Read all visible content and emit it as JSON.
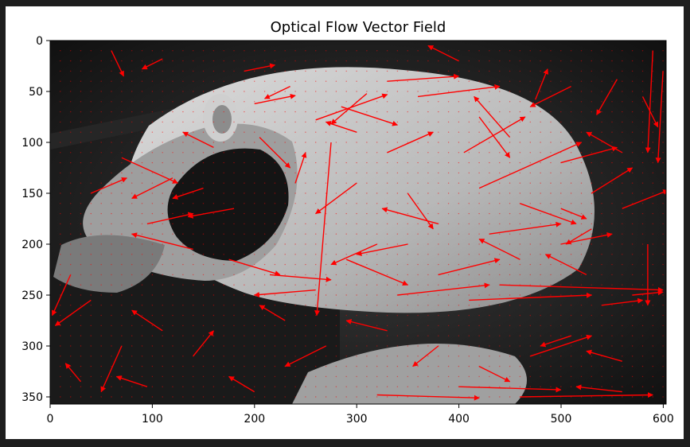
{
  "chart_data": {
    "type": "quiver",
    "title": "Optical Flow Vector Field",
    "xlabel": "",
    "ylabel": "",
    "xlim": [
      0,
      603
    ],
    "ylim": [
      357,
      0
    ],
    "x_ticks": [
      "0",
      "100",
      "200",
      "300",
      "400",
      "500",
      "600"
    ],
    "x_tick_values": [
      0,
      100,
      200,
      300,
      400,
      500,
      600
    ],
    "y_ticks": [
      "0",
      "50",
      "100",
      "150",
      "200",
      "250",
      "300",
      "350"
    ],
    "y_tick_values": [
      0,
      50,
      100,
      150,
      200,
      250,
      300,
      350
    ],
    "background": "grayscale photo of a white rat on a dark background",
    "arrow_color": "#ff0000",
    "grid_spacing": 10,
    "vectors": [
      {
        "x": 60,
        "y": 10,
        "dx": 12,
        "dy": 25
      },
      {
        "x": 110,
        "y": 18,
        "dx": -20,
        "dy": 10
      },
      {
        "x": 190,
        "y": 30,
        "dx": 30,
        "dy": -6
      },
      {
        "x": 200,
        "y": 62,
        "dx": 40,
        "dy": -8
      },
      {
        "x": 235,
        "y": 45,
        "dx": -25,
        "dy": 12
      },
      {
        "x": 260,
        "y": 78,
        "dx": 70,
        "dy": -25
      },
      {
        "x": 285,
        "y": 65,
        "dx": 55,
        "dy": 18
      },
      {
        "x": 310,
        "y": 52,
        "dx": -35,
        "dy": 30
      },
      {
        "x": 330,
        "y": 40,
        "dx": 70,
        "dy": -5
      },
      {
        "x": 360,
        "y": 55,
        "dx": 80,
        "dy": -10
      },
      {
        "x": 400,
        "y": 20,
        "dx": -30,
        "dy": -15
      },
      {
        "x": 420,
        "y": 75,
        "dx": 30,
        "dy": 40
      },
      {
        "x": 450,
        "y": 95,
        "dx": -35,
        "dy": -40
      },
      {
        "x": 475,
        "y": 58,
        "dx": 12,
        "dy": -30
      },
      {
        "x": 510,
        "y": 45,
        "dx": -40,
        "dy": 20
      },
      {
        "x": 555,
        "y": 38,
        "dx": -20,
        "dy": 35
      },
      {
        "x": 580,
        "y": 55,
        "dx": 15,
        "dy": 30
      },
      {
        "x": 590,
        "y": 10,
        "dx": -5,
        "dy": 100
      },
      {
        "x": 600,
        "y": 30,
        "dx": -5,
        "dy": 90
      },
      {
        "x": 70,
        "y": 115,
        "dx": 55,
        "dy": 25
      },
      {
        "x": 40,
        "y": 150,
        "dx": 35,
        "dy": -15
      },
      {
        "x": 120,
        "y": 135,
        "dx": -40,
        "dy": 20
      },
      {
        "x": 160,
        "y": 105,
        "dx": -30,
        "dy": -15
      },
      {
        "x": 205,
        "y": 95,
        "dx": 30,
        "dy": 30
      },
      {
        "x": 275,
        "y": 100,
        "dx": -14,
        "dy": 170
      },
      {
        "x": 300,
        "y": 140,
        "dx": -40,
        "dy": 30
      },
      {
        "x": 330,
        "y": 110,
        "dx": 45,
        "dy": -20
      },
      {
        "x": 350,
        "y": 150,
        "dx": 25,
        "dy": 35
      },
      {
        "x": 405,
        "y": 110,
        "dx": 60,
        "dy": -35
      },
      {
        "x": 420,
        "y": 145,
        "dx": 100,
        "dy": -45
      },
      {
        "x": 460,
        "y": 160,
        "dx": 55,
        "dy": 20
      },
      {
        "x": 500,
        "y": 120,
        "dx": 55,
        "dy": -15
      },
      {
        "x": 530,
        "y": 150,
        "dx": 40,
        "dy": -25
      },
      {
        "x": 560,
        "y": 165,
        "dx": 45,
        "dy": -18
      },
      {
        "x": 95,
        "y": 180,
        "dx": 45,
        "dy": -10
      },
      {
        "x": 140,
        "y": 205,
        "dx": -60,
        "dy": -15
      },
      {
        "x": 175,
        "y": 215,
        "dx": 50,
        "dy": 15
      },
      {
        "x": 215,
        "y": 230,
        "dx": 60,
        "dy": 5
      },
      {
        "x": 260,
        "y": 245,
        "dx": -60,
        "dy": 5
      },
      {
        "x": 290,
        "y": 215,
        "dx": 60,
        "dy": 25
      },
      {
        "x": 320,
        "y": 200,
        "dx": -45,
        "dy": 20
      },
      {
        "x": 340,
        "y": 250,
        "dx": 90,
        "dy": -10
      },
      {
        "x": 380,
        "y": 230,
        "dx": 60,
        "dy": -15
      },
      {
        "x": 410,
        "y": 255,
        "dx": 120,
        "dy": -5
      },
      {
        "x": 440,
        "y": 240,
        "dx": 160,
        "dy": 5
      },
      {
        "x": 460,
        "y": 215,
        "dx": -40,
        "dy": -20
      },
      {
        "x": 500,
        "y": 200,
        "dx": 50,
        "dy": -10
      },
      {
        "x": 525,
        "y": 230,
        "dx": -40,
        "dy": -20
      },
      {
        "x": 540,
        "y": 260,
        "dx": 40,
        "dy": -5
      },
      {
        "x": 20,
        "y": 230,
        "dx": -18,
        "dy": 40
      },
      {
        "x": 40,
        "y": 255,
        "dx": -35,
        "dy": 25
      },
      {
        "x": 70,
        "y": 300,
        "dx": -20,
        "dy": 45
      },
      {
        "x": 110,
        "y": 285,
        "dx": -30,
        "dy": -20
      },
      {
        "x": 140,
        "y": 310,
        "dx": 20,
        "dy": -25
      },
      {
        "x": 230,
        "y": 275,
        "dx": -25,
        "dy": -15
      },
      {
        "x": 270,
        "y": 300,
        "dx": -40,
        "dy": 20
      },
      {
        "x": 330,
        "y": 285,
        "dx": -40,
        "dy": -10
      },
      {
        "x": 380,
        "y": 300,
        "dx": -25,
        "dy": 20
      },
      {
        "x": 420,
        "y": 320,
        "dx": 30,
        "dy": 15
      },
      {
        "x": 470,
        "y": 310,
        "dx": 60,
        "dy": -20
      },
      {
        "x": 510,
        "y": 290,
        "dx": -30,
        "dy": 10
      },
      {
        "x": 560,
        "y": 315,
        "dx": -35,
        "dy": -10
      },
      {
        "x": 30,
        "y": 335,
        "dx": -15,
        "dy": -18
      },
      {
        "x": 95,
        "y": 340,
        "dx": -30,
        "dy": -10
      },
      {
        "x": 200,
        "y": 345,
        "dx": -25,
        "dy": -15
      },
      {
        "x": 320,
        "y": 348,
        "dx": 100,
        "dy": 3
      },
      {
        "x": 400,
        "y": 340,
        "dx": 100,
        "dy": 3
      },
      {
        "x": 460,
        "y": 350,
        "dx": 130,
        "dy": -2
      },
      {
        "x": 560,
        "y": 345,
        "dx": -45,
        "dy": -5
      },
      {
        "x": 585,
        "y": 200,
        "dx": 0,
        "dy": 60
      },
      {
        "x": 570,
        "y": 250,
        "dx": 30,
        "dy": -3
      },
      {
        "x": 560,
        "y": 110,
        "dx": -35,
        "dy": -20
      },
      {
        "x": 150,
        "y": 145,
        "dx": -30,
        "dy": 10
      },
      {
        "x": 180,
        "y": 165,
        "dx": -45,
        "dy": 8
      },
      {
        "x": 240,
        "y": 140,
        "dx": 10,
        "dy": -30
      },
      {
        "x": 380,
        "y": 180,
        "dx": -55,
        "dy": -15
      },
      {
        "x": 430,
        "y": 190,
        "dx": 70,
        "dy": -10
      },
      {
        "x": 350,
        "y": 200,
        "dx": -50,
        "dy": 10
      },
      {
        "x": 500,
        "y": 165,
        "dx": 25,
        "dy": 10
      },
      {
        "x": 530,
        "y": 185,
        "dx": -25,
        "dy": 15
      },
      {
        "x": 300,
        "y": 90,
        "dx": -30,
        "dy": -10
      }
    ]
  }
}
